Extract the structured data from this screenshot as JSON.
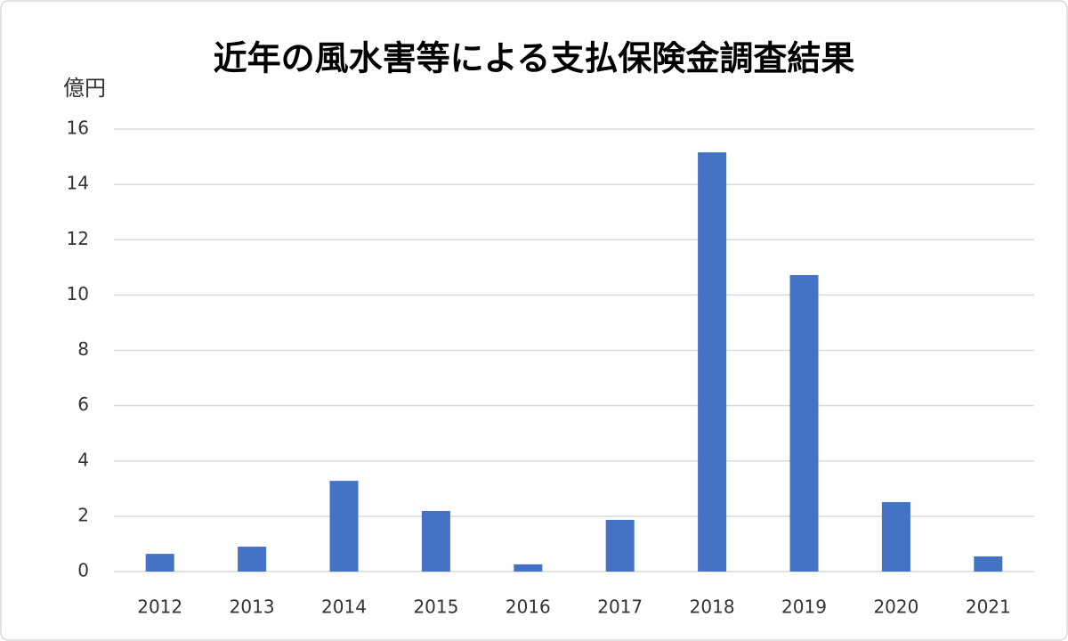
{
  "chart_data": {
    "type": "bar",
    "title": "近年の風水害等による支払保険金調査結果",
    "y_label": "億円",
    "categories": [
      "2012",
      "2013",
      "2014",
      "2015",
      "2016",
      "2017",
      "2018",
      "2019",
      "2020",
      "2021"
    ],
    "values": [
      0.64,
      0.9,
      3.28,
      2.19,
      0.26,
      1.87,
      15.16,
      10.72,
      2.51,
      0.55
    ],
    "color": "#4472c4",
    "ylim": [
      0,
      16
    ],
    "yticks": [
      0,
      2,
      4,
      6,
      8,
      10,
      12,
      14,
      16
    ],
    "grid": true
  }
}
